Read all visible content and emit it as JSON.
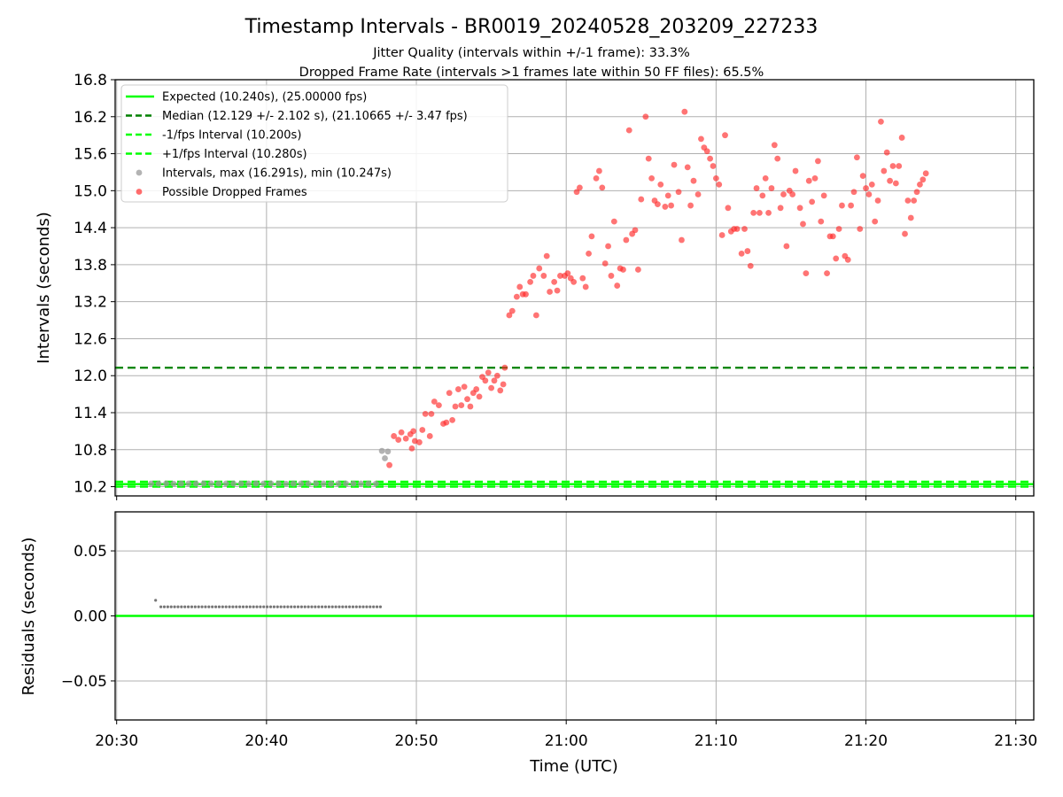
{
  "header": {
    "title": "Timestamp Intervals - BR0019_20240528_203209_227233",
    "subtitle1": "Jitter Quality (intervals within +/-1 frame): 33.3%",
    "subtitle2": "Dropped Frame Rate (intervals >1 frames late within 50 FF files): 65.5%"
  },
  "axes": {
    "top_ylabel": "Intervals (seconds)",
    "bottom_ylabel": "Residuals (seconds)",
    "xlabel": "Time (UTC)"
  },
  "legend": {
    "placement": "upper-left",
    "items": [
      {
        "label": "Expected (10.240s), (25.00000 fps)",
        "style": "solid",
        "color": "#00ff00"
      },
      {
        "label": "Median (12.129 +/- 2.102 s), (21.10665 +/- 3.47 fps)",
        "style": "dashed",
        "color": "#008000"
      },
      {
        "label": "-1/fps Interval (10.200s)",
        "style": "dashed",
        "color": "#00ff00"
      },
      {
        "label": "+1/fps Interval (10.280s)",
        "style": "dashed",
        "color": "#00ff00"
      },
      {
        "label": "Intervals, max (16.291s), min (10.247s)",
        "style": "marker",
        "color": "#999999"
      },
      {
        "label": "Possible Dropped Frames",
        "style": "marker",
        "color": "#ff3b3b"
      }
    ]
  },
  "colors": {
    "expected": "#00ff00",
    "median": "#008000",
    "normal_points": "#999999",
    "dropped_points": "#ff2a2a",
    "residual_points": "#777777",
    "grid": "#b0b0b0"
  },
  "chart_data": [
    {
      "type": "scatter",
      "panel": "top",
      "x_unit": "minutes after 20:30 UTC",
      "xlim": [
        -0.1,
        61.2
      ],
      "ylim": [
        10.05,
        16.8
      ],
      "yticks": [
        10.2,
        10.8,
        11.4,
        12.0,
        12.6,
        13.2,
        13.8,
        14.4,
        15.0,
        15.6,
        16.2,
        16.8
      ],
      "ytick_labels": [
        "10.2",
        "10.8",
        "11.4",
        "12.0",
        "12.6",
        "13.2",
        "13.8",
        "14.4",
        "15.0",
        "15.6",
        "16.2",
        "16.8"
      ],
      "xticks": [
        0,
        10,
        20,
        30,
        40,
        50,
        60
      ],
      "xtick_labels": [
        "20:30",
        "20:40",
        "20:50",
        "21:00",
        "21:10",
        "21:20",
        "21:30"
      ],
      "grid": true,
      "lines": [
        {
          "name": "Expected",
          "y": 10.24
        },
        {
          "name": "Median",
          "y": 12.129
        },
        {
          "name": "-1/fps Interval",
          "y": 10.2
        },
        {
          "name": "+1/fps Interval",
          "y": 10.28
        }
      ],
      "series": [
        {
          "name": "Intervals, max (16.291s), min (10.247s)",
          "points": [
            [
              2.3,
              10.25
            ],
            [
              2.8,
              10.247
            ],
            [
              3.3,
              10.25
            ],
            [
              3.8,
              10.248
            ],
            [
              4.3,
              10.25
            ],
            [
              4.8,
              10.25
            ],
            [
              5.3,
              10.248
            ],
            [
              5.8,
              10.25
            ],
            [
              6.3,
              10.25
            ],
            [
              6.8,
              10.249
            ],
            [
              7.3,
              10.25
            ],
            [
              7.8,
              10.25
            ],
            [
              8.3,
              10.248
            ],
            [
              8.8,
              10.25
            ],
            [
              9.3,
              10.25
            ],
            [
              9.8,
              10.249
            ],
            [
              10.3,
              10.25
            ],
            [
              10.8,
              10.25
            ],
            [
              11.3,
              10.248
            ],
            [
              11.8,
              10.25
            ],
            [
              12.3,
              10.25
            ],
            [
              12.8,
              10.249
            ],
            [
              13.3,
              10.25
            ],
            [
              13.8,
              10.25
            ],
            [
              14.3,
              10.248
            ],
            [
              14.8,
              10.25
            ],
            [
              15.3,
              10.25
            ],
            [
              15.8,
              10.249
            ],
            [
              16.3,
              10.25
            ],
            [
              16.8,
              10.25
            ],
            [
              17.3,
              10.248
            ],
            [
              17.7,
              10.78
            ],
            [
              17.9,
              10.66
            ],
            [
              18.1,
              10.77
            ]
          ]
        },
        {
          "name": "Possible Dropped Frames",
          "points": [
            [
              18.2,
              10.55
            ],
            [
              18.5,
              11.02
            ],
            [
              18.8,
              10.96
            ],
            [
              19.0,
              11.08
            ],
            [
              19.3,
              10.98
            ],
            [
              19.6,
              11.05
            ],
            [
              19.8,
              11.1
            ],
            [
              19.7,
              10.82
            ],
            [
              19.9,
              10.94
            ],
            [
              20.2,
              10.92
            ],
            [
              20.4,
              11.12
            ],
            [
              20.6,
              11.38
            ],
            [
              20.9,
              11.02
            ],
            [
              21.0,
              11.38
            ],
            [
              21.2,
              11.58
            ],
            [
              21.5,
              11.52
            ],
            [
              21.8,
              11.22
            ],
            [
              22.0,
              11.24
            ],
            [
              22.2,
              11.72
            ],
            [
              22.4,
              11.28
            ],
            [
              22.6,
              11.5
            ],
            [
              22.8,
              11.78
            ],
            [
              23.0,
              11.52
            ],
            [
              23.2,
              11.82
            ],
            [
              23.4,
              11.62
            ],
            [
              23.6,
              11.5
            ],
            [
              23.8,
              11.72
            ],
            [
              24.0,
              11.78
            ],
            [
              24.2,
              11.66
            ],
            [
              24.4,
              11.98
            ],
            [
              24.6,
              11.92
            ],
            [
              24.8,
              12.05
            ],
            [
              25.0,
              11.8
            ],
            [
              25.2,
              11.92
            ],
            [
              25.4,
              12.0
            ],
            [
              25.6,
              11.76
            ],
            [
              25.8,
              11.86
            ],
            [
              25.9,
              12.13
            ],
            [
              26.2,
              12.98
            ],
            [
              26.4,
              13.05
            ],
            [
              26.7,
              13.28
            ],
            [
              26.9,
              13.44
            ],
            [
              27.1,
              13.32
            ],
            [
              27.3,
              13.32
            ],
            [
              27.6,
              13.52
            ],
            [
              27.8,
              13.62
            ],
            [
              28.0,
              12.98
            ],
            [
              28.2,
              13.74
            ],
            [
              28.5,
              13.62
            ],
            [
              28.7,
              13.94
            ],
            [
              28.9,
              13.36
            ],
            [
              29.2,
              13.52
            ],
            [
              29.4,
              13.38
            ],
            [
              29.6,
              13.62
            ],
            [
              29.9,
              13.62
            ],
            [
              30.1,
              13.66
            ],
            [
              30.3,
              13.58
            ],
            [
              30.5,
              13.52
            ],
            [
              30.7,
              14.98
            ],
            [
              30.9,
              15.05
            ],
            [
              31.1,
              13.58
            ],
            [
              31.3,
              13.44
            ],
            [
              31.5,
              13.98
            ],
            [
              31.7,
              14.26
            ],
            [
              32.0,
              15.2
            ],
            [
              32.2,
              15.32
            ],
            [
              32.4,
              15.05
            ],
            [
              32.6,
              13.82
            ],
            [
              32.8,
              14.1
            ],
            [
              33.0,
              13.62
            ],
            [
              33.2,
              14.5
            ],
            [
              33.4,
              13.46
            ],
            [
              33.6,
              13.74
            ],
            [
              33.8,
              13.72
            ],
            [
              34.0,
              14.2
            ],
            [
              34.2,
              15.98
            ],
            [
              34.4,
              14.3
            ],
            [
              34.6,
              14.36
            ],
            [
              34.8,
              13.72
            ],
            [
              35.0,
              14.86
            ],
            [
              35.3,
              16.2
            ],
            [
              35.5,
              15.52
            ],
            [
              35.7,
              15.2
            ],
            [
              35.9,
              14.84
            ],
            [
              36.1,
              14.78
            ],
            [
              36.3,
              15.1
            ],
            [
              36.6,
              14.74
            ],
            [
              36.8,
              14.92
            ],
            [
              37.0,
              14.76
            ],
            [
              37.2,
              15.42
            ],
            [
              37.5,
              14.98
            ],
            [
              37.7,
              14.2
            ],
            [
              37.9,
              16.28
            ],
            [
              38.1,
              15.38
            ],
            [
              38.3,
              14.76
            ],
            [
              38.5,
              15.16
            ],
            [
              38.8,
              14.94
            ],
            [
              39.0,
              15.84
            ],
            [
              39.2,
              15.7
            ],
            [
              39.4,
              15.64
            ],
            [
              39.6,
              15.52
            ],
            [
              39.8,
              15.4
            ],
            [
              40.0,
              15.2
            ],
            [
              40.2,
              15.1
            ],
            [
              40.4,
              14.28
            ],
            [
              40.6,
              15.9
            ],
            [
              40.8,
              14.72
            ],
            [
              41.0,
              14.34
            ],
            [
              41.2,
              14.38
            ],
            [
              41.4,
              14.38
            ],
            [
              41.7,
              13.98
            ],
            [
              41.9,
              14.38
            ],
            [
              42.1,
              14.02
            ],
            [
              42.3,
              13.78
            ],
            [
              42.5,
              14.64
            ],
            [
              42.7,
              15.04
            ],
            [
              42.9,
              14.64
            ],
            [
              43.1,
              14.92
            ],
            [
              43.3,
              15.2
            ],
            [
              43.5,
              14.64
            ],
            [
              43.7,
              15.04
            ],
            [
              43.9,
              15.74
            ],
            [
              44.1,
              15.52
            ],
            [
              44.3,
              14.72
            ],
            [
              44.5,
              14.94
            ],
            [
              44.7,
              14.1
            ],
            [
              44.9,
              15.0
            ],
            [
              45.1,
              14.94
            ],
            [
              45.3,
              15.32
            ],
            [
              45.6,
              14.72
            ],
            [
              45.8,
              14.46
            ],
            [
              46.0,
              13.66
            ],
            [
              46.2,
              15.16
            ],
            [
              46.4,
              14.82
            ],
            [
              46.6,
              15.2
            ],
            [
              46.8,
              15.48
            ],
            [
              47.0,
              14.5
            ],
            [
              47.2,
              14.92
            ],
            [
              47.4,
              13.66
            ],
            [
              47.6,
              14.26
            ],
            [
              47.8,
              14.26
            ],
            [
              48.0,
              13.9
            ],
            [
              48.2,
              14.38
            ],
            [
              48.4,
              14.76
            ],
            [
              48.6,
              13.94
            ],
            [
              48.8,
              13.88
            ],
            [
              49.0,
              14.76
            ],
            [
              49.2,
              14.98
            ],
            [
              49.4,
              15.54
            ],
            [
              49.6,
              14.38
            ],
            [
              49.8,
              15.24
            ],
            [
              50.0,
              15.04
            ],
            [
              50.2,
              14.94
            ],
            [
              50.4,
              15.1
            ],
            [
              50.6,
              14.5
            ],
            [
              50.8,
              14.84
            ],
            [
              51.0,
              16.12
            ],
            [
              51.2,
              15.32
            ],
            [
              51.4,
              15.62
            ],
            [
              51.6,
              15.16
            ],
            [
              51.8,
              15.4
            ],
            [
              52.0,
              15.12
            ],
            [
              52.2,
              15.4
            ],
            [
              52.4,
              15.86
            ],
            [
              52.6,
              14.3
            ],
            [
              52.8,
              14.84
            ],
            [
              53.0,
              14.56
            ],
            [
              53.2,
              14.84
            ],
            [
              53.4,
              14.98
            ],
            [
              53.6,
              15.1
            ],
            [
              53.8,
              15.18
            ],
            [
              54.0,
              15.28
            ]
          ]
        }
      ]
    },
    {
      "type": "scatter",
      "panel": "bottom",
      "x_unit": "minutes after 20:30 UTC",
      "xlim": [
        -0.1,
        61.2
      ],
      "ylim": [
        -0.08,
        0.08
      ],
      "yticks": [
        -0.05,
        0.0,
        0.05
      ],
      "ytick_labels": [
        "−0.05",
        "0.00",
        "0.05"
      ],
      "grid": true,
      "lines": [
        {
          "name": "zero",
          "y": 0.0
        }
      ],
      "series": [
        {
          "name": "Residuals",
          "x_start": 2.6,
          "x_end": 17.6,
          "count": 65,
          "first_point": [
            2.6,
            0.012
          ],
          "value": 0.007
        }
      ]
    }
  ]
}
